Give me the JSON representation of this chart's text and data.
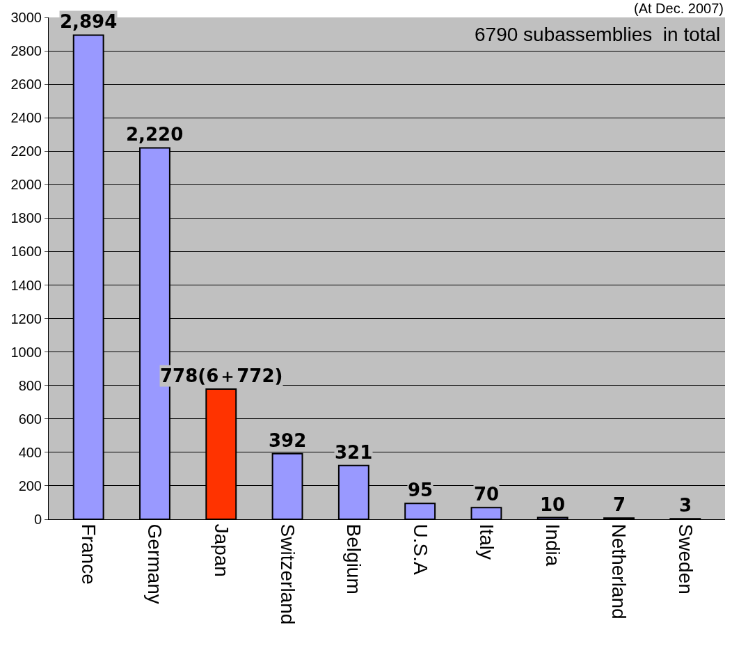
{
  "chart_data": {
    "type": "bar",
    "categories": [
      "France",
      "Germany",
      "Japan",
      "Switzerland",
      "Belgium",
      "U.S.A",
      "Italy",
      "India",
      "Netherland",
      "Sweden"
    ],
    "values": [
      2894,
      2220,
      778,
      392,
      321,
      95,
      70,
      10,
      7,
      3
    ],
    "value_labels": [
      "2,894",
      "2,220",
      "778(6＋772)",
      "392",
      "321",
      "95",
      "70",
      "10",
      "7",
      "3"
    ],
    "colors": [
      "#9999ff",
      "#9999ff",
      "#ff3300",
      "#9999ff",
      "#9999ff",
      "#9999ff",
      "#9999ff",
      "#9999ff",
      "#9999ff",
      "#9999ff"
    ],
    "ylim": [
      0,
      3000
    ],
    "yticks": [
      0,
      200,
      400,
      600,
      800,
      1000,
      1200,
      1400,
      1600,
      1800,
      2000,
      2200,
      2400,
      2600,
      2800,
      3000
    ],
    "grid": "y",
    "legend": false,
    "annotations": [
      "(At Dec. 2007)",
      "6790 subassemblies  in total"
    ]
  }
}
